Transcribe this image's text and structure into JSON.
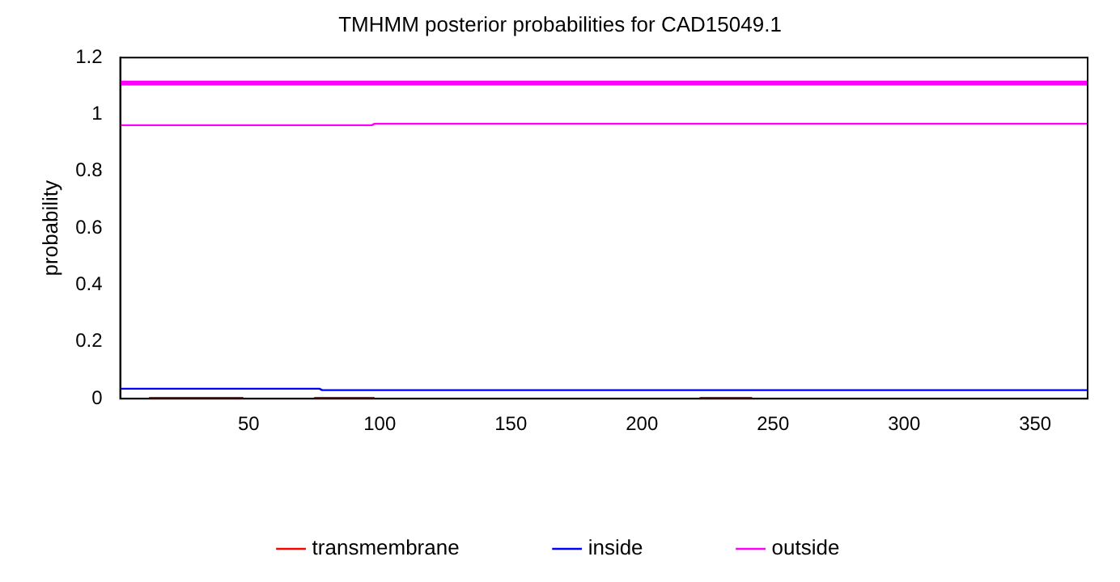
{
  "chart_data": {
    "type": "line",
    "title": "TMHMM posterior probabilities for CAD15049.1",
    "ylabel": "probability",
    "xlim": [
      1,
      370
    ],
    "xticks": [
      50,
      100,
      150,
      200,
      250,
      300,
      350
    ],
    "ylim": [
      0,
      1.2
    ],
    "yticks": [
      0,
      0.2,
      0.4,
      0.6,
      0.8,
      1,
      1.2
    ],
    "grid": false,
    "legend": "bottom",
    "marker": "none",
    "line_style": "solid",
    "series": [
      {
        "name": "transmembrane",
        "color": "#ff0000",
        "x": [
          12,
          48,
          49,
          75,
          98,
          99,
          222,
          242
        ],
        "values": [
          0.003,
          0.003,
          null,
          0.003,
          0.003,
          null,
          0.003,
          0.003
        ]
      },
      {
        "name": "inside",
        "color": "#0000ff",
        "x": [
          1,
          77,
          78,
          370
        ],
        "values": [
          0.035,
          0.035,
          0.03,
          0.03
        ]
      },
      {
        "name": "outside",
        "color": "#ff00ff",
        "x": [
          1,
          97,
          98,
          370
        ],
        "values": [
          0.962,
          0.962,
          0.967,
          0.967
        ]
      },
      {
        "color": "#ff00ff",
        "x": [
          1,
          370
        ],
        "values": [
          1.11,
          1.11
        ]
      }
    ]
  }
}
